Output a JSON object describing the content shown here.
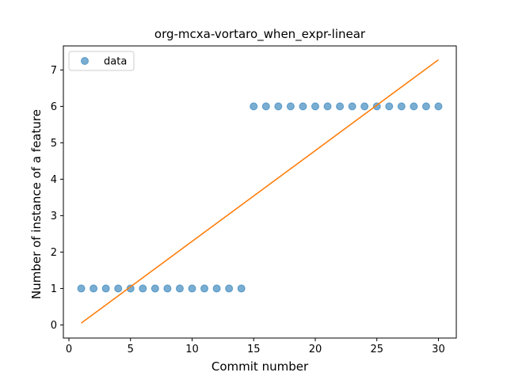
{
  "chart_data": {
    "type": "scatter",
    "title": "org-mcxa-vortaro_when_expr-linear",
    "xlabel": "Commit number",
    "ylabel": "Number of instance of a feature",
    "xlim": [
      -0.45,
      31.45
    ],
    "ylim": [
      -0.36,
      7.66
    ],
    "xticks": [
      0,
      5,
      10,
      15,
      20,
      25,
      30
    ],
    "yticks": [
      0,
      1,
      2,
      3,
      4,
      5,
      6,
      7
    ],
    "grid": false,
    "legend_position": "top-left",
    "series": [
      {
        "name": "data",
        "kind": "scatter",
        "color": "#1f77b4",
        "x": [
          1,
          2,
          3,
          4,
          5,
          6,
          7,
          8,
          9,
          10,
          11,
          12,
          13,
          14,
          15,
          16,
          17,
          18,
          19,
          20,
          21,
          22,
          23,
          24,
          25,
          26,
          27,
          28,
          29,
          30
        ],
        "y": [
          1,
          1,
          1,
          1,
          1,
          1,
          1,
          1,
          1,
          1,
          1,
          1,
          1,
          1,
          6,
          6,
          6,
          6,
          6,
          6,
          6,
          6,
          6,
          6,
          6,
          6,
          6,
          6,
          6,
          6
        ]
      },
      {
        "kind": "line",
        "color": "#ff7f0e",
        "x": [
          1,
          30
        ],
        "y": [
          0.05,
          7.28
        ]
      }
    ]
  }
}
